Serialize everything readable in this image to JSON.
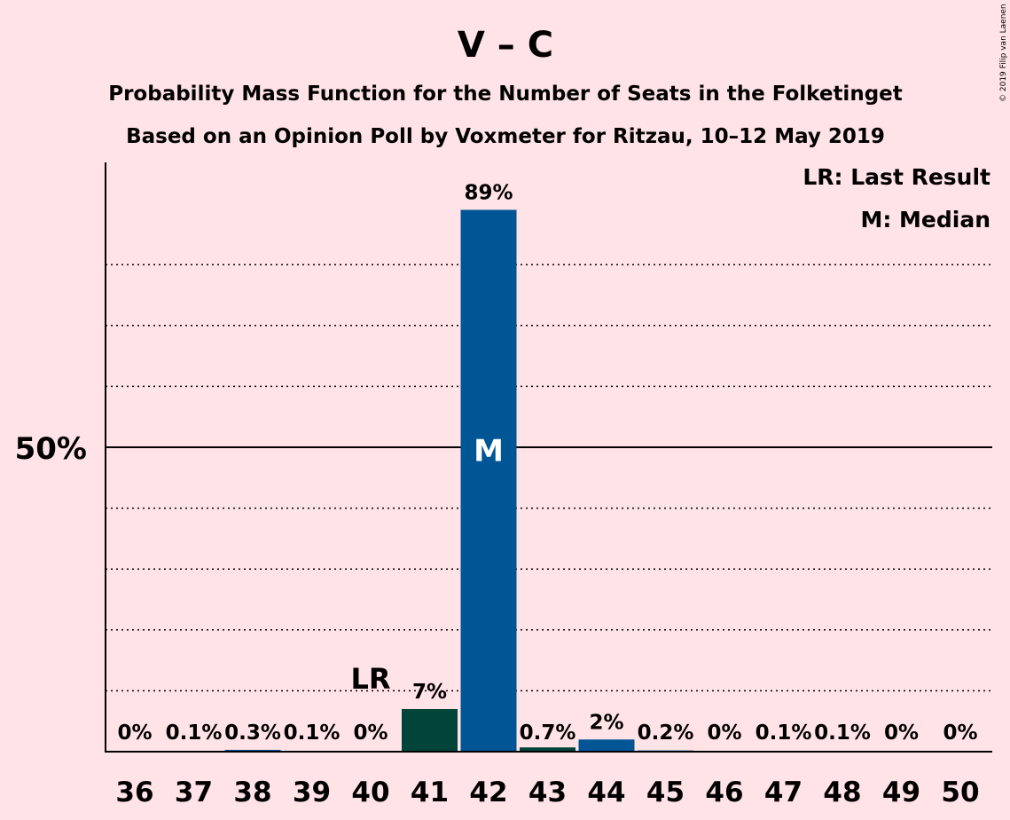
{
  "chart_data": {
    "type": "bar",
    "title": "V – C",
    "subtitle_lines": [
      "Probability Mass Function for the Number of Seats in the Folketinget",
      "Based on an Opinion Poll by Voxmeter for Ritzau, 10–12 May 2019"
    ],
    "copyright": "© 2019 Filip van Laenen",
    "legend": [
      "LR: Last Result",
      "M: Median"
    ],
    "categories": [
      "36",
      "37",
      "38",
      "39",
      "40",
      "41",
      "42",
      "43",
      "44",
      "45",
      "46",
      "47",
      "48",
      "49",
      "50"
    ],
    "values": [
      0,
      0.1,
      0.3,
      0.1,
      0,
      7,
      89,
      0.7,
      2,
      0.2,
      0,
      0.1,
      0.1,
      0,
      0
    ],
    "value_labels": [
      "0%",
      "0.1%",
      "0.3%",
      "0.1%",
      "0%",
      "7%",
      "89%",
      "0.7%",
      "2%",
      "0.2%",
      "0%",
      "0.1%",
      "0.1%",
      "0%",
      "0%"
    ],
    "yticks": [
      {
        "value": 50,
        "label": "50%"
      }
    ],
    "gridlines": [
      10,
      20,
      30,
      40,
      60,
      70,
      80
    ],
    "ylim": [
      0,
      97
    ],
    "last_result": {
      "category": "40",
      "label": "LR"
    },
    "median": {
      "category": "42",
      "label": "M"
    },
    "bar_colors": {
      "41": "#00443A",
      "42": "#005595",
      "43": "#00443A",
      "44": "#005595",
      "default": "#005595"
    },
    "background": "#FFE3E6"
  }
}
